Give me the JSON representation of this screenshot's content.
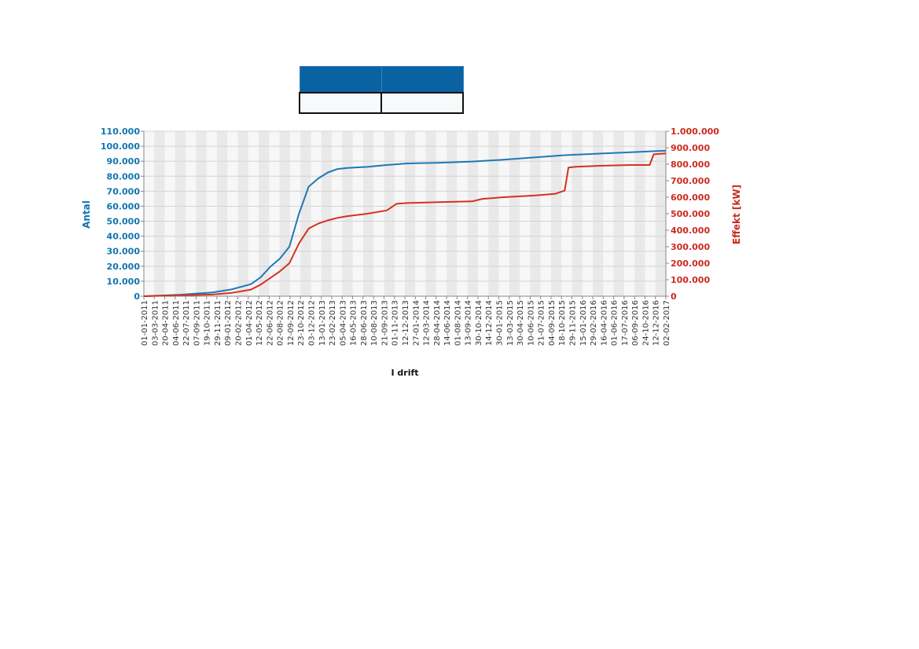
{
  "legend": {
    "cells": [
      "",
      ""
    ]
  },
  "chart_data": {
    "type": "line",
    "title": "",
    "xlabel": "I drift",
    "ylabel_left": "Antal",
    "ylabel_right": "Effekt [kW]",
    "ylim_left": [
      0,
      110000
    ],
    "ylim_right": [
      0,
      1000000
    ],
    "grid": true,
    "colors": {
      "left": "#1f78b4",
      "right": "#d7301f",
      "left_axis": "#1175ae",
      "right_axis": "#cc2a1e"
    },
    "y_ticks_left": [
      "0",
      "10.000",
      "20.000",
      "30.000",
      "40.000",
      "50.000",
      "60.000",
      "70.000",
      "80.000",
      "90.000",
      "100.000",
      "110.000"
    ],
    "y_ticks_right": [
      "0",
      "100.000",
      "200.000",
      "300.000",
      "400.000",
      "500.000",
      "600.000",
      "700.000",
      "800.000",
      "900.000",
      "1.000.000"
    ],
    "x_ticks": [
      "01-01-2011",
      "03-03-2011",
      "20-04-2011",
      "04-06-2011",
      "22-07-2011",
      "07-09-2011",
      "19-10-2011",
      "29-11-2011",
      "09-01-2012",
      "20-02-2012",
      "01-04-2012",
      "12-05-2012",
      "22-06-2012",
      "02-08-2012",
      "12-09-2012",
      "23-10-2012",
      "03-12-2012",
      "13-01-2013",
      "23-02-2013",
      "05-04-2013",
      "16-05-2013",
      "28-06-2013",
      "10-08-2013",
      "21-09-2013",
      "01-11-2013",
      "12-12-2013",
      "27-01-2014",
      "12-03-2014",
      "28-04-2014",
      "14-06-2014",
      "01-08-2014",
      "13-09-2014",
      "30-10-2014",
      "14-12-2014",
      "30-01-2015",
      "13-03-2015",
      "30-04-2015",
      "10-06-2015",
      "21-07-2015",
      "04-09-2015",
      "18-10-2015",
      "29-11-2015",
      "15-01-2016",
      "29-02-2016",
      "16-04-2016",
      "01-06-2016",
      "17-07-2016",
      "06-09-2016",
      "24-10-2016",
      "12-12-2016",
      "02-02-2017"
    ],
    "series": [
      {
        "axis": "left",
        "x": [
          "2011-01-01",
          "2011-06-04",
          "2011-10-19",
          "2012-01-09",
          "2012-04-01",
          "2012-05-12",
          "2012-06-22",
          "2012-08-02",
          "2012-09-12",
          "2012-10-23",
          "2012-12-03",
          "2013-01-13",
          "2013-02-23",
          "2013-04-05",
          "2013-05-16",
          "2013-08-10",
          "2013-11-01",
          "2014-01-27",
          "2014-06-14",
          "2014-10-30",
          "2015-03-13",
          "2015-07-21",
          "2015-11-29",
          "2016-04-16",
          "2016-09-06",
          "2017-02-02"
        ],
        "values": [
          0,
          1000,
          2500,
          4500,
          8000,
          12500,
          19500,
          25000,
          33000,
          55000,
          73000,
          78500,
          82500,
          84800,
          85500,
          86200,
          87500,
          88500,
          89000,
          89800,
          91000,
          92500,
          94000,
          95000,
          96000,
          97000
        ]
      },
      {
        "axis": "right",
        "x": [
          "2011-01-01",
          "2011-06-04",
          "2011-10-19",
          "2012-01-09",
          "2012-04-01",
          "2012-05-12",
          "2012-06-22",
          "2012-08-02",
          "2012-09-12",
          "2012-10-23",
          "2012-12-03",
          "2013-01-13",
          "2013-02-23",
          "2013-04-05",
          "2013-05-16",
          "2013-08-10",
          "2013-11-01",
          "2013-12-12",
          "2014-01-27",
          "2014-06-14",
          "2014-10-30",
          "2014-12-14",
          "2015-03-13",
          "2015-07-21",
          "2015-10-18",
          "2015-11-29",
          "2015-12-15",
          "2016-01-15",
          "2016-04-16",
          "2016-09-06",
          "2016-11-25",
          "2016-12-12",
          "2017-02-02"
        ],
        "values": [
          0,
          5000,
          10000,
          20000,
          40000,
          70000,
          110000,
          150000,
          200000,
          320000,
          410000,
          440000,
          460000,
          475000,
          485000,
          500000,
          520000,
          560000,
          565000,
          570000,
          575000,
          590000,
          600000,
          610000,
          620000,
          640000,
          780000,
          785000,
          790000,
          795000,
          795000,
          860000,
          865000
        ]
      }
    ]
  }
}
